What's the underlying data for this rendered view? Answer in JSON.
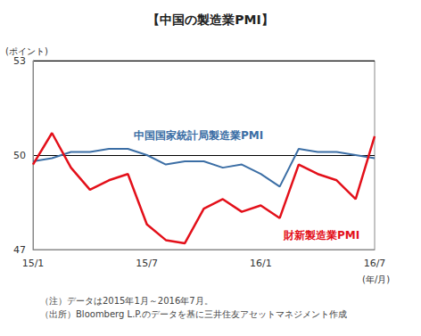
{
  "chart_data": {
    "type": "line",
    "title": "【中国の製造業PMI】",
    "y_label": "(ポイント)",
    "x_label": "(年/月)",
    "notes": [
      "（注）データは2015年1月～2016年7月。",
      "（出所）Bloomberg L.P.のデータを基に三井住友アセットマネジメント作成"
    ],
    "categories": [
      "15/1",
      null,
      null,
      null,
      null,
      null,
      "15/7",
      null,
      null,
      null,
      null,
      null,
      "16/1",
      null,
      null,
      null,
      null,
      null,
      "16/7"
    ],
    "series": [
      {
        "name": "中国国家統計局製造業PMI",
        "color": "#3b6ea5",
        "values": [
          49.8,
          49.9,
          50.1,
          50.1,
          50.2,
          50.2,
          50.0,
          49.7,
          49.8,
          49.8,
          49.6,
          49.7,
          49.4,
          49.0,
          50.2,
          50.1,
          50.1,
          50.0,
          49.9
        ]
      },
      {
        "name": "財新製造業PMI",
        "color": "#e3101a",
        "values": [
          49.7,
          50.7,
          49.6,
          48.9,
          49.2,
          49.4,
          47.8,
          47.3,
          47.2,
          48.3,
          48.6,
          48.2,
          48.4,
          48.0,
          49.7,
          49.4,
          49.2,
          48.6,
          50.6
        ]
      }
    ],
    "ylim": [
      47,
      53
    ],
    "yticks": [
      47,
      50,
      53
    ],
    "grid": true
  }
}
